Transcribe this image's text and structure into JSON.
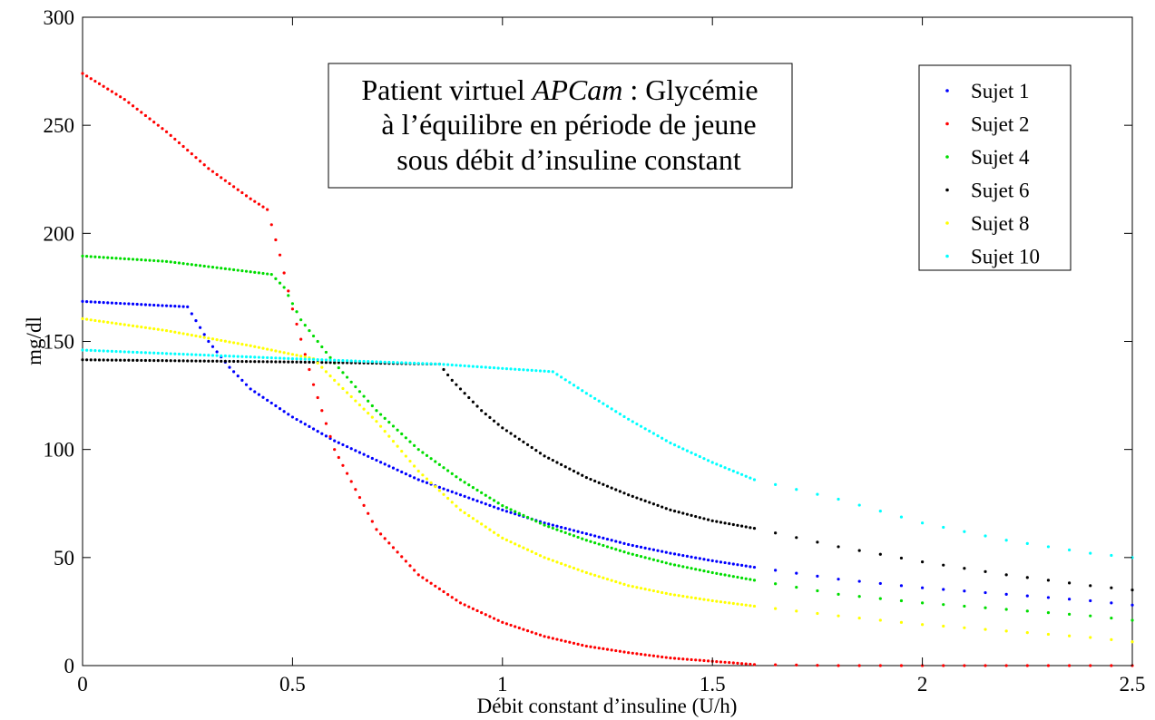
{
  "chart_data": {
    "type": "scatter",
    "title_lines": [
      "Patient virtuel ",
      "APCam",
      " : Glycémie",
      "à l’équilibre en période de jeune",
      "sous débit d’insuline constant"
    ],
    "xlabel": "Débit constant d’insuline (U/h)",
    "ylabel": "mg/dl",
    "xlim": [
      0,
      2.5
    ],
    "ylim": [
      0,
      300
    ],
    "xticks": [
      "0",
      "0.5",
      "1",
      "1.5",
      "2",
      "2.5"
    ],
    "yticks": [
      "0",
      "50",
      "100",
      "150",
      "200",
      "250",
      "300"
    ],
    "grid": false,
    "legend_position": "top-right",
    "sampling": {
      "dense_step": 0.01,
      "dense_max": 1.6,
      "sparse_step": 0.05,
      "sparse_max": 2.5
    },
    "series": [
      {
        "name": "Sujet 1",
        "color": "#0000ff",
        "curve": [
          [
            0,
            168.5
          ],
          [
            0.25,
            166
          ],
          [
            0.3,
            150
          ],
          [
            0.35,
            138
          ],
          [
            0.4,
            128
          ],
          [
            0.5,
            115
          ],
          [
            0.6,
            104
          ],
          [
            0.7,
            95
          ],
          [
            0.8,
            86
          ],
          [
            0.9,
            79
          ],
          [
            1.0,
            72
          ],
          [
            1.1,
            66
          ],
          [
            1.2,
            61
          ],
          [
            1.3,
            56
          ],
          [
            1.4,
            52
          ],
          [
            1.5,
            48.5
          ],
          [
            1.6,
            45.5
          ],
          [
            1.8,
            40
          ],
          [
            2.0,
            36
          ],
          [
            2.2,
            33
          ],
          [
            2.4,
            30
          ],
          [
            2.5,
            28
          ]
        ]
      },
      {
        "name": "Sujet 2",
        "color": "#ff0000",
        "curve": [
          [
            0,
            274
          ],
          [
            0.1,
            262
          ],
          [
            0.2,
            247
          ],
          [
            0.3,
            230
          ],
          [
            0.4,
            216
          ],
          [
            0.44,
            211
          ],
          [
            0.45,
            204
          ],
          [
            0.47,
            190
          ],
          [
            0.5,
            165
          ],
          [
            0.55,
            130
          ],
          [
            0.6,
            100
          ],
          [
            0.7,
            63
          ],
          [
            0.8,
            42
          ],
          [
            0.9,
            29
          ],
          [
            1.0,
            20
          ],
          [
            1.1,
            13.5
          ],
          [
            1.2,
            9
          ],
          [
            1.3,
            6
          ],
          [
            1.4,
            3.5
          ],
          [
            1.5,
            2
          ],
          [
            1.6,
            0.5
          ],
          [
            1.8,
            0
          ],
          [
            2.5,
            0
          ]
        ]
      },
      {
        "name": "Sujet 4",
        "color": "#00dd00",
        "curve": [
          [
            0,
            189.5
          ],
          [
            0.2,
            187
          ],
          [
            0.45,
            181
          ],
          [
            0.48,
            175
          ],
          [
            0.52,
            160
          ],
          [
            0.6,
            140
          ],
          [
            0.7,
            118
          ],
          [
            0.8,
            100
          ],
          [
            0.9,
            86
          ],
          [
            1.0,
            74
          ],
          [
            1.1,
            65
          ],
          [
            1.2,
            58
          ],
          [
            1.3,
            52
          ],
          [
            1.4,
            47
          ],
          [
            1.5,
            43
          ],
          [
            1.6,
            39.5
          ],
          [
            1.8,
            33
          ],
          [
            2.0,
            29
          ],
          [
            2.2,
            26
          ],
          [
            2.4,
            23
          ],
          [
            2.5,
            21
          ]
        ]
      },
      {
        "name": "Sujet 6",
        "color": "#000000",
        "curve": [
          [
            0,
            141.5
          ],
          [
            0.5,
            140.5
          ],
          [
            0.85,
            139.5
          ],
          [
            0.88,
            132
          ],
          [
            0.95,
            118
          ],
          [
            1.0,
            110
          ],
          [
            1.1,
            97
          ],
          [
            1.2,
            87
          ],
          [
            1.3,
            79
          ],
          [
            1.4,
            72
          ],
          [
            1.5,
            67
          ],
          [
            1.6,
            63.5
          ],
          [
            1.8,
            55
          ],
          [
            2.0,
            48
          ],
          [
            2.2,
            42
          ],
          [
            2.4,
            37
          ],
          [
            2.5,
            35
          ]
        ]
      },
      {
        "name": "Sujet 8",
        "color": "#ffff00",
        "curve": [
          [
            0,
            160.5
          ],
          [
            0.2,
            155
          ],
          [
            0.4,
            148
          ],
          [
            0.55,
            142
          ],
          [
            0.6,
            132
          ],
          [
            0.7,
            113
          ],
          [
            0.8,
            90
          ],
          [
            0.9,
            72
          ],
          [
            1.0,
            59
          ],
          [
            1.1,
            50
          ],
          [
            1.2,
            43
          ],
          [
            1.3,
            37
          ],
          [
            1.4,
            33
          ],
          [
            1.5,
            30
          ],
          [
            1.6,
            27.5
          ],
          [
            1.8,
            23
          ],
          [
            2.0,
            19
          ],
          [
            2.2,
            16
          ],
          [
            2.4,
            13
          ],
          [
            2.5,
            11
          ]
        ]
      },
      {
        "name": "Sujet 10",
        "color": "#00ffff",
        "curve": [
          [
            0,
            146
          ],
          [
            0.5,
            142
          ],
          [
            0.85,
            139.5
          ],
          [
            1.0,
            137.5
          ],
          [
            1.12,
            136
          ],
          [
            1.2,
            126
          ],
          [
            1.3,
            114
          ],
          [
            1.4,
            103
          ],
          [
            1.5,
            94
          ],
          [
            1.6,
            86
          ],
          [
            1.8,
            77
          ],
          [
            2.0,
            66
          ],
          [
            2.2,
            58
          ],
          [
            2.4,
            52
          ],
          [
            2.5,
            50
          ]
        ]
      }
    ]
  }
}
